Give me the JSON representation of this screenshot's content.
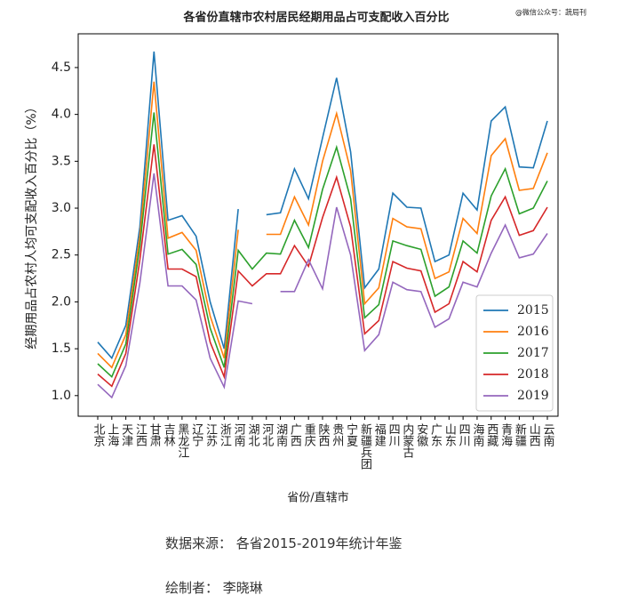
{
  "watermark": "@微信公众号：蔬局刊",
  "chart_data": {
    "type": "line",
    "title": "各省份直辖市农村居民经期用品占可支配收入百分比",
    "x_label": "省份/直辖市",
    "y_label": "经期用品占农村人均可支配收入百分比（%）",
    "categories": [
      "北京",
      "上海",
      "天津",
      "江西",
      "甘肃",
      "吉林",
      "黑龙江",
      "辽宁",
      "江苏",
      "浙江",
      "河南",
      "湖北",
      "河北",
      "湖南",
      "广西",
      "重庆",
      "陕西",
      "贵州",
      "宁夏",
      "新疆兵团",
      "福建",
      "四川",
      "内蒙古",
      "安徽",
      "广东",
      "山东",
      "四川",
      "海南",
      "西藏",
      "青海",
      "新疆",
      "山西",
      "云南"
    ],
    "ylim": [
      0.78,
      4.86
    ],
    "yticks": [
      {
        "value": 1,
        "label": "1.0"
      },
      {
        "value": 1.5,
        "label": "1.5"
      },
      {
        "value": 2,
        "label": "2.0"
      },
      {
        "value": 2.5,
        "label": "2.5"
      },
      {
        "value": 3,
        "label": "3.0"
      },
      {
        "value": 3.5,
        "label": "3.5"
      },
      {
        "value": 4,
        "label": "4.0"
      },
      {
        "value": 4.5,
        "label": "4.5"
      }
    ],
    "legend": "lower right",
    "series": [
      {
        "name": "2015",
        "color": "#1f77b4",
        "values": [
          1.57,
          1.4,
          1.75,
          2.8,
          4.67,
          2.87,
          2.92,
          2.7,
          2.0,
          1.5,
          2.99,
          null,
          2.93,
          2.95,
          3.42,
          3.1,
          3.75,
          4.39,
          3.6,
          2.15,
          2.35,
          3.16,
          3.01,
          3.0,
          2.43,
          2.5,
          3.16,
          2.98,
          3.93,
          4.08,
          3.44,
          3.43,
          3.93
        ]
      },
      {
        "name": "2016",
        "color": "#ff7f0e",
        "values": [
          1.45,
          1.3,
          1.65,
          2.7,
          4.35,
          2.68,
          2.74,
          2.55,
          1.85,
          1.4,
          2.77,
          null,
          2.72,
          2.72,
          3.12,
          2.82,
          3.5,
          4.01,
          3.4,
          1.98,
          2.15,
          2.89,
          2.8,
          2.78,
          2.25,
          2.32,
          2.89,
          2.73,
          3.56,
          3.74,
          3.19,
          3.21,
          3.59
        ]
      },
      {
        "name": "2017",
        "color": "#2ca02c",
        "values": [
          1.34,
          1.2,
          1.55,
          2.6,
          4.02,
          2.51,
          2.56,
          2.4,
          1.72,
          1.3,
          2.55,
          2.35,
          2.52,
          2.51,
          2.87,
          2.58,
          3.2,
          3.65,
          3.1,
          1.83,
          1.97,
          2.65,
          2.6,
          2.56,
          2.06,
          2.16,
          2.65,
          2.52,
          3.13,
          3.42,
          2.94,
          3.0,
          3.29
        ]
      },
      {
        "name": "2018",
        "color": "#d62728",
        "values": [
          1.23,
          1.1,
          1.45,
          2.45,
          3.68,
          2.35,
          2.35,
          2.27,
          1.57,
          1.2,
          2.33,
          2.17,
          2.3,
          2.3,
          2.6,
          2.38,
          2.9,
          3.33,
          2.8,
          1.66,
          1.8,
          2.43,
          2.36,
          2.33,
          1.89,
          1.98,
          2.43,
          2.32,
          2.87,
          3.12,
          2.71,
          2.76,
          3.01
        ]
      },
      {
        "name": "2019",
        "color": "#9467bd",
        "values": [
          1.12,
          0.98,
          1.32,
          2.2,
          3.37,
          2.17,
          2.17,
          2.02,
          1.4,
          1.09,
          2.01,
          1.98,
          null,
          2.11,
          2.11,
          2.45,
          2.14,
          3.01,
          2.5,
          1.48,
          1.65,
          2.21,
          2.13,
          2.11,
          1.73,
          1.82,
          2.21,
          2.16,
          2.52,
          2.82,
          2.47,
          2.51,
          2.73
        ]
      }
    ]
  },
  "footer": {
    "source": "数据来源：  各省2015-2019年统计年鉴",
    "author": "绘制者：  李晓琳"
  }
}
